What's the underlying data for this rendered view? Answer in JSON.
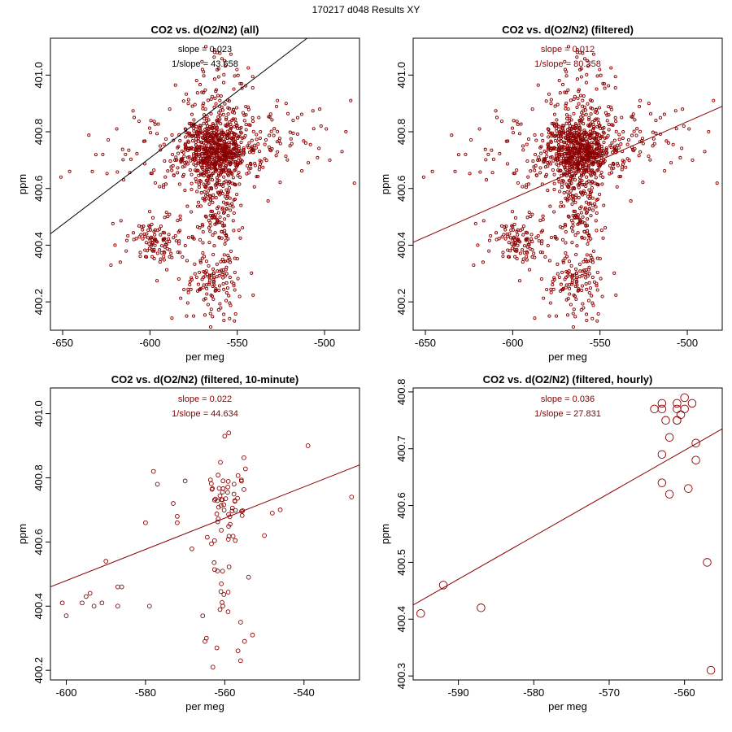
{
  "figure_title": "170217   d048   Results XY",
  "colors": {
    "points": "#8b0000",
    "fit_all": "#000000",
    "fit_filtered": "#8b0000",
    "frame": "#000000"
  },
  "chart_data": [
    {
      "id": "all",
      "type": "scatter",
      "title": "CO2 vs. d(O2/N2) (all)",
      "xlabel": "per meg",
      "ylabel": "ppm",
      "xlim": [
        -657,
        -480
      ],
      "ylim": [
        400.1,
        401.13
      ],
      "xticks": [
        -650,
        -600,
        -550,
        -500
      ],
      "yticks": [
        400.2,
        400.4,
        400.6,
        400.8,
        401.0
      ],
      "slope_label": "slope = 0.023",
      "inv_slope_label": "1/slope = 43.658",
      "annotation_color": "#000000",
      "fit_line": {
        "color": "#000000",
        "from": [
          -657,
          400.44
        ],
        "to": [
          -510,
          401.13
        ]
      },
      "point_radius": 1.6,
      "clusters": [
        {
          "cx": -562,
          "cy": 400.74,
          "sx": 9,
          "sy": 0.055,
          "n": 560,
          "seed": 11
        },
        {
          "cx": -563,
          "cy": 400.62,
          "sx": 8,
          "sy": 0.09,
          "n": 140,
          "seed": 12
        },
        {
          "cx": -560,
          "cy": 400.87,
          "sx": 11,
          "sy": 0.09,
          "n": 70,
          "seed": 13
        },
        {
          "cx": -595,
          "cy": 400.42,
          "sx": 9,
          "sy": 0.045,
          "n": 110,
          "seed": 14
        },
        {
          "cx": -562,
          "cy": 400.28,
          "sx": 9,
          "sy": 0.065,
          "n": 130,
          "seed": 15
        },
        {
          "cx": -560,
          "cy": 400.49,
          "sx": 6,
          "sy": 0.05,
          "n": 70,
          "seed": 16
        },
        {
          "cx": -585,
          "cy": 400.72,
          "sx": 22,
          "sy": 0.08,
          "n": 100,
          "seed": 17
        },
        {
          "cx": -535,
          "cy": 400.76,
          "sx": 18,
          "sy": 0.07,
          "n": 90,
          "seed": 18
        },
        {
          "cx": -563,
          "cy": 401.02,
          "sx": 8,
          "sy": 0.05,
          "n": 25,
          "seed": 19
        }
      ],
      "points": [
        [
          -651,
          400.64
        ],
        [
          -646,
          400.66
        ],
        [
          -633,
          400.66
        ],
        [
          -627,
          400.72
        ],
        [
          -619,
          400.81
        ],
        [
          -614,
          400.72
        ],
        [
          -620,
          400.4
        ],
        [
          -617,
          400.34
        ],
        [
          -579,
          400.15
        ],
        [
          -575,
          400.15
        ],
        [
          -499,
          400.81
        ],
        [
          -502,
          400.82
        ],
        [
          -490,
          400.73
        ],
        [
          -497,
          400.7
        ],
        [
          -485,
          400.91
        ],
        [
          -527,
          400.91
        ],
        [
          -522,
          400.9
        ],
        [
          -518,
          400.84
        ],
        [
          -568,
          401.1
        ],
        [
          -563,
          401.08
        ]
      ]
    },
    {
      "id": "filtered",
      "type": "scatter",
      "title": "CO2 vs. d(O2/N2) (filtered)",
      "xlabel": "per meg",
      "ylabel": "ppm",
      "xlim": [
        -657,
        -480
      ],
      "ylim": [
        400.1,
        401.13
      ],
      "xticks": [
        -650,
        -600,
        -550,
        -500
      ],
      "yticks": [
        400.2,
        400.4,
        400.6,
        400.8,
        401.0
      ],
      "slope_label": "slope = 0.012",
      "inv_slope_label": "1/slope = 80.358",
      "annotation_color": "#8b0000",
      "fit_line": {
        "color": "#8b0000",
        "from": [
          -657,
          400.41
        ],
        "to": [
          -480,
          400.89
        ]
      },
      "point_radius": 1.6,
      "clusters": [
        {
          "cx": -562,
          "cy": 400.74,
          "sx": 9,
          "sy": 0.055,
          "n": 560,
          "seed": 11
        },
        {
          "cx": -563,
          "cy": 400.62,
          "sx": 8,
          "sy": 0.09,
          "n": 140,
          "seed": 12
        },
        {
          "cx": -560,
          "cy": 400.87,
          "sx": 11,
          "sy": 0.09,
          "n": 70,
          "seed": 13
        },
        {
          "cx": -595,
          "cy": 400.42,
          "sx": 9,
          "sy": 0.045,
          "n": 110,
          "seed": 14
        },
        {
          "cx": -562,
          "cy": 400.28,
          "sx": 9,
          "sy": 0.065,
          "n": 130,
          "seed": 15
        },
        {
          "cx": -560,
          "cy": 400.49,
          "sx": 6,
          "sy": 0.05,
          "n": 70,
          "seed": 16
        },
        {
          "cx": -585,
          "cy": 400.72,
          "sx": 22,
          "sy": 0.08,
          "n": 100,
          "seed": 17
        },
        {
          "cx": -535,
          "cy": 400.76,
          "sx": 18,
          "sy": 0.07,
          "n": 90,
          "seed": 18
        },
        {
          "cx": -563,
          "cy": 401.02,
          "sx": 8,
          "sy": 0.05,
          "n": 25,
          "seed": 19
        }
      ],
      "points": [
        [
          -651,
          400.64
        ],
        [
          -646,
          400.66
        ],
        [
          -633,
          400.66
        ],
        [
          -627,
          400.72
        ],
        [
          -619,
          400.81
        ],
        [
          -614,
          400.72
        ],
        [
          -620,
          400.4
        ],
        [
          -617,
          400.34
        ],
        [
          -579,
          400.15
        ],
        [
          -575,
          400.15
        ],
        [
          -499,
          400.81
        ],
        [
          -502,
          400.82
        ],
        [
          -490,
          400.73
        ],
        [
          -497,
          400.7
        ],
        [
          -485,
          400.91
        ],
        [
          -527,
          400.91
        ],
        [
          -522,
          400.9
        ],
        [
          -518,
          400.84
        ],
        [
          -568,
          401.1
        ],
        [
          -563,
          401.08
        ]
      ]
    },
    {
      "id": "ten-minute",
      "type": "scatter",
      "title": "CO2 vs. d(O2/N2) (filtered, 10-minute)",
      "xlabel": "per meg",
      "ylabel": "ppm",
      "xlim": [
        -604,
        -526
      ],
      "ylim": [
        400.17,
        401.08
      ],
      "xticks": [
        -600,
        -580,
        -560,
        -540
      ],
      "yticks": [
        400.2,
        400.4,
        400.6,
        400.8,
        401.0
      ],
      "slope_label": "slope = 0.022",
      "inv_slope_label": "1/slope = 44.634",
      "annotation_color": "#8b0000",
      "fit_line": {
        "color": "#8b0000",
        "from": [
          -604,
          400.46
        ],
        "to": [
          -526,
          400.84
        ]
      },
      "point_radius": 2.4,
      "clusters": [
        {
          "cx": -560,
          "cy": 400.74,
          "sx": 3,
          "sy": 0.05,
          "n": 45,
          "seed": 31
        },
        {
          "cx": -560,
          "cy": 400.58,
          "sx": 3,
          "sy": 0.08,
          "n": 20,
          "seed": 32
        },
        {
          "cx": -560,
          "cy": 400.33,
          "sx": 3,
          "sy": 0.08,
          "n": 8,
          "seed": 33
        }
      ],
      "points": [
        [
          -601,
          400.41
        ],
        [
          -600,
          400.37
        ],
        [
          -596,
          400.41
        ],
        [
          -595,
          400.43
        ],
        [
          -594,
          400.44
        ],
        [
          -593,
          400.4
        ],
        [
          -591,
          400.41
        ],
        [
          -590,
          400.54
        ],
        [
          -587,
          400.46
        ],
        [
          -587,
          400.4
        ],
        [
          -586,
          400.46
        ],
        [
          -580,
          400.66
        ],
        [
          -579,
          400.4
        ],
        [
          -578,
          400.82
        ],
        [
          -577,
          400.78
        ],
        [
          -573,
          400.72
        ],
        [
          -572,
          400.68
        ],
        [
          -572,
          400.66
        ],
        [
          -570,
          400.79
        ],
        [
          -565,
          400.29
        ],
        [
          -563,
          400.21
        ],
        [
          -562,
          400.27
        ],
        [
          -556,
          400.23
        ],
        [
          -556,
          400.35
        ],
        [
          -553,
          400.31
        ],
        [
          -550,
          400.62
        ],
        [
          -548,
          400.69
        ],
        [
          -546,
          400.7
        ],
        [
          -539,
          400.9
        ],
        [
          -528,
          400.74
        ],
        [
          -559,
          400.94
        ],
        [
          -560,
          400.93
        ],
        [
          -555,
          400.29
        ],
        [
          -554,
          400.49
        ]
      ]
    },
    {
      "id": "hourly",
      "type": "scatter",
      "title": "CO2 vs. d(O2/N2) (filtered, hourly)",
      "xlabel": "per meg",
      "ylabel": "ppm",
      "xlim": [
        -596,
        -555
      ],
      "ylim": [
        400.293,
        400.807
      ],
      "xticks": [
        -590,
        -580,
        -570,
        -560
      ],
      "yticks": [
        400.3,
        400.4,
        400.5,
        400.6,
        400.7,
        400.8
      ],
      "slope_label": "slope = 0.036",
      "inv_slope_label": "1/slope = 27.831",
      "annotation_color": "#8b0000",
      "fit_line": {
        "color": "#8b0000",
        "from": [
          -596,
          400.425
        ],
        "to": [
          -555,
          400.735
        ]
      },
      "point_radius": 4.8,
      "clusters": [],
      "points": [
        [
          -595,
          400.41
        ],
        [
          -592,
          400.46
        ],
        [
          -587,
          400.42
        ],
        [
          -564,
          400.77
        ],
        [
          -563,
          400.69
        ],
        [
          -563,
          400.64
        ],
        [
          -563,
          400.78
        ],
        [
          -563,
          400.77
        ],
        [
          -562,
          400.72
        ],
        [
          -562.5,
          400.75
        ],
        [
          -562,
          400.62
        ],
        [
          -561,
          400.75
        ],
        [
          -561,
          400.78
        ],
        [
          -561,
          400.77
        ],
        [
          -560.5,
          400.76
        ],
        [
          -560,
          400.79
        ],
        [
          -560,
          400.77
        ],
        [
          -559.5,
          400.63
        ],
        [
          -559,
          400.78
        ],
        [
          -558.5,
          400.71
        ],
        [
          -558.5,
          400.68
        ],
        [
          -557,
          400.5
        ],
        [
          -556.5,
          400.31
        ],
        [
          -561,
          400.75
        ]
      ]
    }
  ]
}
